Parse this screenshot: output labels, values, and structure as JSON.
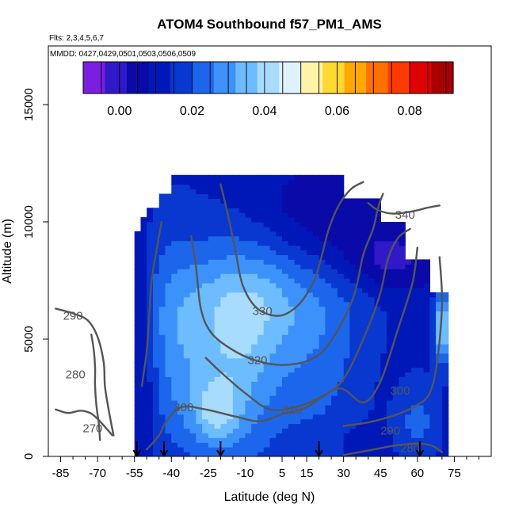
{
  "chart_data": {
    "type": "heatmap",
    "title": "ATOM4 Southbound f57_PM1_AMS",
    "subtitle_flights": "Flts: 2,3,4,5,6,7",
    "subtitle_dates": "MMDD: 0427,0429,0501,0503,0506,0509",
    "xlabel": "Latitude (deg N)",
    "ylabel": "Altitude (m)",
    "xlim": [
      -90,
      90
    ],
    "ylim": [
      0,
      17500
    ],
    "x_ticks": [
      -85,
      -70,
      -55,
      -40,
      -25,
      -10,
      5,
      15,
      30,
      45,
      60,
      75
    ],
    "x_minor_ticks": [
      -80,
      -75,
      -65,
      -60,
      -50,
      -45,
      -35,
      -30,
      -20,
      -15,
      0,
      10,
      20,
      25,
      35,
      40,
      50,
      55,
      65,
      70,
      80,
      85
    ],
    "y_ticks": [
      0,
      5000,
      10000,
      15000
    ],
    "colorbar": {
      "range": [
        -0.01,
        0.092
      ],
      "ticks": [
        0.0,
        0.02,
        0.04,
        0.06,
        0.08
      ],
      "tick_labels": [
        "0.00",
        "0.02",
        "0.04",
        "0.06",
        "0.08"
      ],
      "colors": [
        "#7a1ee0",
        "#3019c8",
        "#0a0aa8",
        "#0018b8",
        "#0838d0",
        "#1c66ec",
        "#3c92fa",
        "#6cbcff",
        "#a8dcff",
        "#dff1ff",
        "#fff3a8",
        "#ffd830",
        "#ffa800",
        "#ff7000",
        "#ff3a00",
        "#e00000",
        "#a80000"
      ]
    },
    "profile_markers_lat": [
      -54,
      -43,
      -20,
      20,
      61
    ],
    "data_extent": {
      "lat_range": [
        -55,
        72
      ],
      "alt_range": [
        0,
        12000
      ]
    },
    "theta_contours": [
      {
        "label": "270",
        "label_pos": [
          -72,
          1200
        ],
        "points": [
          [
            -72.5,
            5200
          ],
          [
            -71.5,
            4500
          ],
          [
            -71,
            3800
          ],
          [
            -71,
            3000
          ],
          [
            -70.5,
            2200
          ],
          [
            -69.5,
            1400
          ],
          [
            -69,
            700
          ]
        ]
      },
      {
        "label": "280",
        "label_pos": [
          -79,
          3500
        ],
        "points": [
          [
            -87,
            2000
          ],
          [
            -82,
            1850
          ],
          [
            -77,
            1950
          ],
          [
            -73,
            1850
          ],
          [
            -70,
            1600
          ],
          [
            -66.5,
            1200
          ],
          [
            -64,
            900
          ]
        ]
      },
      {
        "label": "280",
        "label_pos": [
          57,
          350
        ],
        "points": [
          [
            30,
            60
          ],
          [
            40,
            250
          ],
          [
            50,
            450
          ],
          [
            60,
            550
          ],
          [
            66,
            450
          ],
          [
            70,
            180
          ]
        ]
      },
      {
        "label": "290",
        "label_pos": [
          -80,
          6000
        ],
        "points": [
          [
            -87,
            6300
          ],
          [
            -80,
            6100
          ],
          [
            -74,
            5800
          ],
          [
            -70,
            5100
          ],
          [
            -67.5,
            4000
          ],
          [
            -67,
            3000
          ],
          [
            -65.5,
            2000
          ],
          [
            -63.5,
            900
          ]
        ]
      },
      {
        "label": "290",
        "label_pos": [
          49,
          1100
        ],
        "points": [
          [
            30,
            1300
          ],
          [
            40,
            1450
          ],
          [
            52,
            1800
          ],
          [
            60,
            2200
          ],
          [
            65,
            2700
          ],
          [
            68,
            4000
          ],
          [
            70,
            6500
          ],
          [
            69,
            8500
          ]
        ]
      },
      {
        "label": "300",
        "label_pos": [
          -35,
          2100
        ],
        "points": [
          [
            -50,
            300
          ],
          [
            -45,
            900
          ],
          [
            -42,
            1500
          ],
          [
            -36,
            2100
          ],
          [
            -26,
            2000
          ],
          [
            -14,
            1700
          ],
          [
            -4,
            1500
          ],
          [
            5,
            1800
          ],
          [
            15,
            2100
          ],
          [
            28,
            2900
          ],
          [
            38,
            2300
          ],
          [
            45,
            3200
          ],
          [
            52,
            5400
          ],
          [
            58,
            7400
          ],
          [
            60,
            8900
          ]
        ]
      },
      {
        "label": "300",
        "label_pos": [
          53,
          2800
        ],
        "points": [
          [
            -52,
            3000
          ],
          [
            -50,
            4500
          ],
          [
            -49,
            6000
          ],
          [
            -48,
            7500
          ],
          [
            -46,
            8800
          ],
          [
            -44,
            10000
          ]
        ]
      },
      {
        "label": "310",
        "label_pos": [
          9,
          2000
        ],
        "points": [
          [
            -26,
            4200
          ],
          [
            -20,
            3600
          ],
          [
            -10,
            2700
          ],
          [
            0,
            2000
          ],
          [
            10,
            2100
          ],
          [
            20,
            2500
          ],
          [
            30,
            3300
          ],
          [
            40,
            5500
          ],
          [
            45,
            7000
          ],
          [
            48,
            8400
          ],
          [
            52,
            9300
          ],
          [
            57,
            9700
          ]
        ]
      },
      {
        "label": "320",
        "label_pos": [
          -5,
          4100
        ],
        "points": [
          [
            -32,
            9400
          ],
          [
            -30,
            8100
          ],
          [
            -28,
            6300
          ],
          [
            -24,
            5300
          ],
          [
            -16,
            4600
          ],
          [
            -6,
            4100
          ],
          [
            6,
            3900
          ],
          [
            18,
            4200
          ],
          [
            26,
            5100
          ],
          [
            34,
            6800
          ],
          [
            38,
            8600
          ],
          [
            42,
            9700
          ],
          [
            44,
            10600
          ],
          [
            46,
            11200
          ]
        ]
      },
      {
        "label": "330",
        "label_pos": [
          -3,
          6200
        ],
        "points": [
          [
            -20,
            11600
          ],
          [
            -17,
            10300
          ],
          [
            -14,
            8800
          ],
          [
            -11,
            7300
          ],
          [
            -5,
            6300
          ],
          [
            4,
            6000
          ],
          [
            12,
            6500
          ],
          [
            18,
            7500
          ],
          [
            21,
            8500
          ],
          [
            24,
            9700
          ],
          [
            28,
            10700
          ],
          [
            33,
            11400
          ],
          [
            38,
            11700
          ]
        ]
      },
      {
        "label": "340",
        "label_pos": [
          55,
          10300
        ],
        "points": [
          [
            40,
            10800
          ],
          [
            44,
            10500
          ],
          [
            50,
            10350
          ],
          [
            58,
            10450
          ],
          [
            64,
            10600
          ],
          [
            69,
            10700
          ]
        ]
      }
    ]
  }
}
